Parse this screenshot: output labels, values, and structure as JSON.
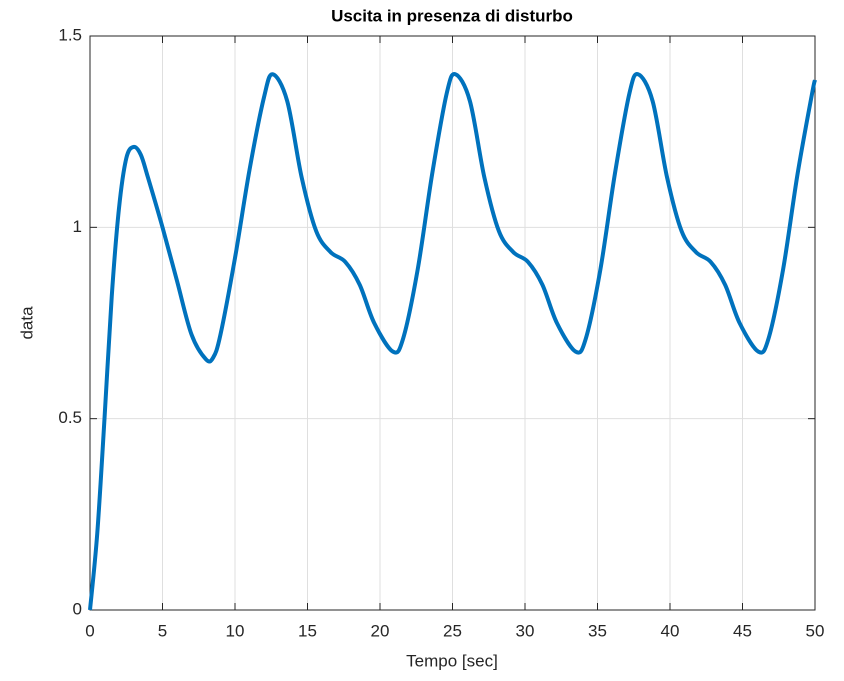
{
  "chart_data": {
    "type": "line",
    "title": "Uscita in presenza di disturbo",
    "xlabel": "Tempo [sec]",
    "ylabel": "data",
    "x": [
      0,
      0.5,
      1,
      1.5,
      2,
      2.5,
      3,
      3.5,
      4,
      5,
      6,
      7,
      8,
      8.5,
      9,
      10,
      11,
      12,
      12.6,
      13.6,
      14.6,
      15.6,
      16.6,
      17.6,
      18.6,
      19.6,
      20.9,
      21.6,
      22.6,
      23.6,
      24.6,
      25.2,
      26.2,
      27.2,
      28.2,
      29.2,
      30.2,
      31.2,
      32.2,
      33.5,
      34.2,
      35.2,
      36.2,
      37.2,
      37.8,
      38.8,
      39.8,
      40.8,
      41.8,
      42.8,
      43.8,
      44.8,
      46.1,
      46.8,
      47.8,
      48.8,
      49.8,
      50
    ],
    "series": [
      {
        "name": "data",
        "color": "#0072bd",
        "values": [
          0,
          0.2,
          0.5,
          0.82,
          1.05,
          1.18,
          1.21,
          1.19,
          1.13,
          1.0,
          0.86,
          0.72,
          0.655,
          0.66,
          0.72,
          0.92,
          1.15,
          1.34,
          1.4,
          1.33,
          1.13,
          0.99,
          0.935,
          0.91,
          0.85,
          0.75,
          0.675,
          0.71,
          0.89,
          1.14,
          1.35,
          1.4,
          1.33,
          1.13,
          0.99,
          0.935,
          0.91,
          0.85,
          0.75,
          0.675,
          0.71,
          0.89,
          1.14,
          1.35,
          1.4,
          1.33,
          1.13,
          0.99,
          0.935,
          0.91,
          0.85,
          0.75,
          0.675,
          0.71,
          0.89,
          1.14,
          1.35,
          1.385
        ]
      }
    ],
    "xlim": [
      0,
      50
    ],
    "xticks": [
      0,
      5,
      10,
      15,
      20,
      25,
      30,
      35,
      40,
      45,
      50
    ],
    "ylim": [
      0,
      1.5
    ],
    "yticks": [
      0,
      0.5,
      1,
      1.5
    ],
    "grid": true
  }
}
